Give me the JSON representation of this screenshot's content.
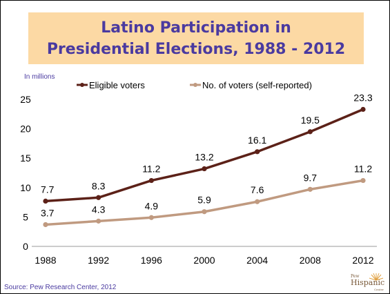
{
  "title": {
    "line1": "Latino Participation in",
    "line2": "Presidential Elections, 1988 - 2012"
  },
  "source": "Source: Pew Research Center, 2012",
  "logo": {
    "small": "Pew",
    "main": "Hispanic",
    "tag": "Center"
  },
  "colors": {
    "title_bg": "#fcd9a4",
    "title_text": "#4a3aa0",
    "eligible": "#5c2118",
    "voters": "#c09a80"
  },
  "chart_data": {
    "type": "line",
    "unit_label": "In millions",
    "x": [
      "1988",
      "1992",
      "1996",
      "2000",
      "2004",
      "2008",
      "2012"
    ],
    "series": [
      {
        "name": "Eligible voters",
        "values": [
          7.7,
          8.3,
          11.2,
          13.2,
          16.1,
          19.5,
          23.3
        ]
      },
      {
        "name": "No. of voters (self-reported)",
        "values": [
          3.7,
          4.3,
          4.9,
          5.9,
          7.6,
          9.7,
          11.2
        ]
      }
    ],
    "ylim": [
      0,
      25
    ],
    "yticks": [
      0,
      5,
      10,
      15,
      20,
      25
    ],
    "grid": false,
    "legend_position": "top",
    "data_labels": true
  }
}
